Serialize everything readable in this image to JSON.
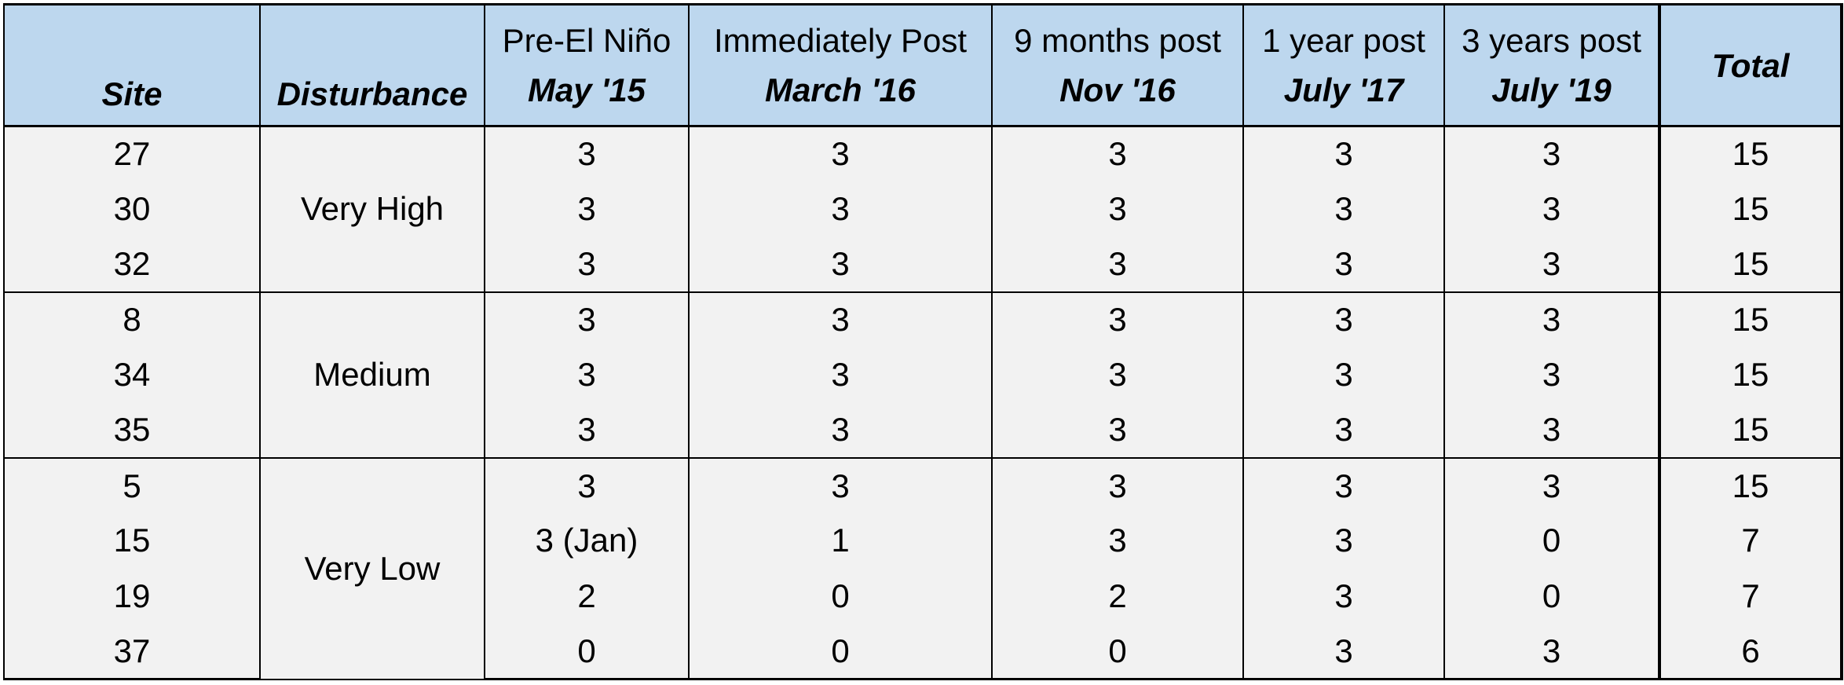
{
  "table": {
    "headers": {
      "site": "Site",
      "disturbance": "Disturbance",
      "periods": [
        {
          "line1": "Pre-El Niño",
          "line2": "May '15"
        },
        {
          "line1": "Immediately Post",
          "line2": "March '16"
        },
        {
          "line1": "9 months post",
          "line2": "Nov '16"
        },
        {
          "line1": "1 year post",
          "line2": "July '17"
        },
        {
          "line1": "3 years post",
          "line2": "July '19"
        }
      ],
      "total": "Total"
    },
    "groups": [
      {
        "disturbance": "Very High",
        "rows": [
          {
            "site": "27",
            "values": [
              "3",
              "3",
              "3",
              "3",
              "3"
            ],
            "total": "15"
          },
          {
            "site": "30",
            "values": [
              "3",
              "3",
              "3",
              "3",
              "3"
            ],
            "total": "15"
          },
          {
            "site": "32",
            "values": [
              "3",
              "3",
              "3",
              "3",
              "3"
            ],
            "total": "15"
          }
        ]
      },
      {
        "disturbance": "Medium",
        "rows": [
          {
            "site": "8",
            "values": [
              "3",
              "3",
              "3",
              "3",
              "3"
            ],
            "total": "15"
          },
          {
            "site": "34",
            "values": [
              "3",
              "3",
              "3",
              "3",
              "3"
            ],
            "total": "15"
          },
          {
            "site": "35",
            "values": [
              "3",
              "3",
              "3",
              "3",
              "3"
            ],
            "total": "15"
          }
        ]
      },
      {
        "disturbance": "Very Low",
        "rows": [
          {
            "site": "5",
            "values": [
              "3",
              "3",
              "3",
              "3",
              "3"
            ],
            "total": "15"
          },
          {
            "site": "15",
            "values": [
              "3 (Jan)",
              "1",
              "3",
              "3",
              "0"
            ],
            "total": "7"
          },
          {
            "site": "19",
            "values": [
              "2",
              "0",
              "2",
              "3",
              "0"
            ],
            "total": "7"
          },
          {
            "site": "37",
            "values": [
              "0",
              "0",
              "0",
              "3",
              "3"
            ],
            "total": "6"
          }
        ]
      }
    ]
  }
}
